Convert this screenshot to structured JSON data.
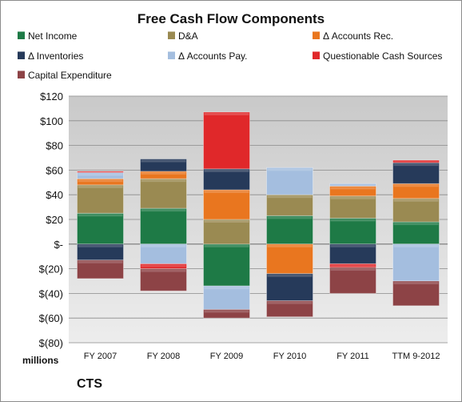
{
  "chart_data": {
    "type": "bar",
    "stacked": true,
    "title": "Free Cash Flow Components",
    "y_unit_label": "millions",
    "ylim": [
      -80,
      120
    ],
    "yticks": [
      120,
      100,
      80,
      60,
      40,
      20,
      0,
      -20,
      -40,
      -60,
      -80
    ],
    "ytick_labels": [
      "$120",
      "$100",
      "$80",
      "$60",
      "$40",
      "$20",
      "$-",
      "$(20)",
      "$(40)",
      "$(60)",
      "$(80)"
    ],
    "categories": [
      "FY 2007",
      "FY 2008",
      "FY 2009",
      "FY 2010",
      "FY 2011",
      "TTM 9-2012"
    ],
    "legend_position": "top",
    "grid": true,
    "series": [
      {
        "name": "Net Income",
        "color": "#1e7a46",
        "values": [
          25,
          29,
          -34,
          23,
          21,
          18
        ]
      },
      {
        "name": "D&A",
        "color": "#9a8a52",
        "values": [
          23,
          24,
          20,
          17,
          18,
          19
        ]
      },
      {
        "name": "Δ Accounts Rec.",
        "color": "#e9761f",
        "values": [
          5,
          6,
          24,
          -24,
          8,
          12
        ]
      },
      {
        "name": "Δ Inventories",
        "color": "#263a5a",
        "values": [
          -13,
          10,
          17,
          -22,
          -16,
          17
        ]
      },
      {
        "name": "Δ Accounts Pay.",
        "color": "#a4bedf",
        "values": [
          5,
          -16,
          -19,
          22,
          2,
          -30
        ]
      },
      {
        "name": "Questionable Cash Sources",
        "color": "#e0282a",
        "values": [
          1,
          -4,
          46,
          0,
          -3,
          2
        ]
      },
      {
        "name": "Capital Expenditure",
        "color": "#8d4346",
        "values": [
          -15,
          -18,
          -7,
          -13,
          -21,
          -20
        ]
      }
    ]
  },
  "footer": {
    "ticker": "CTS"
  }
}
